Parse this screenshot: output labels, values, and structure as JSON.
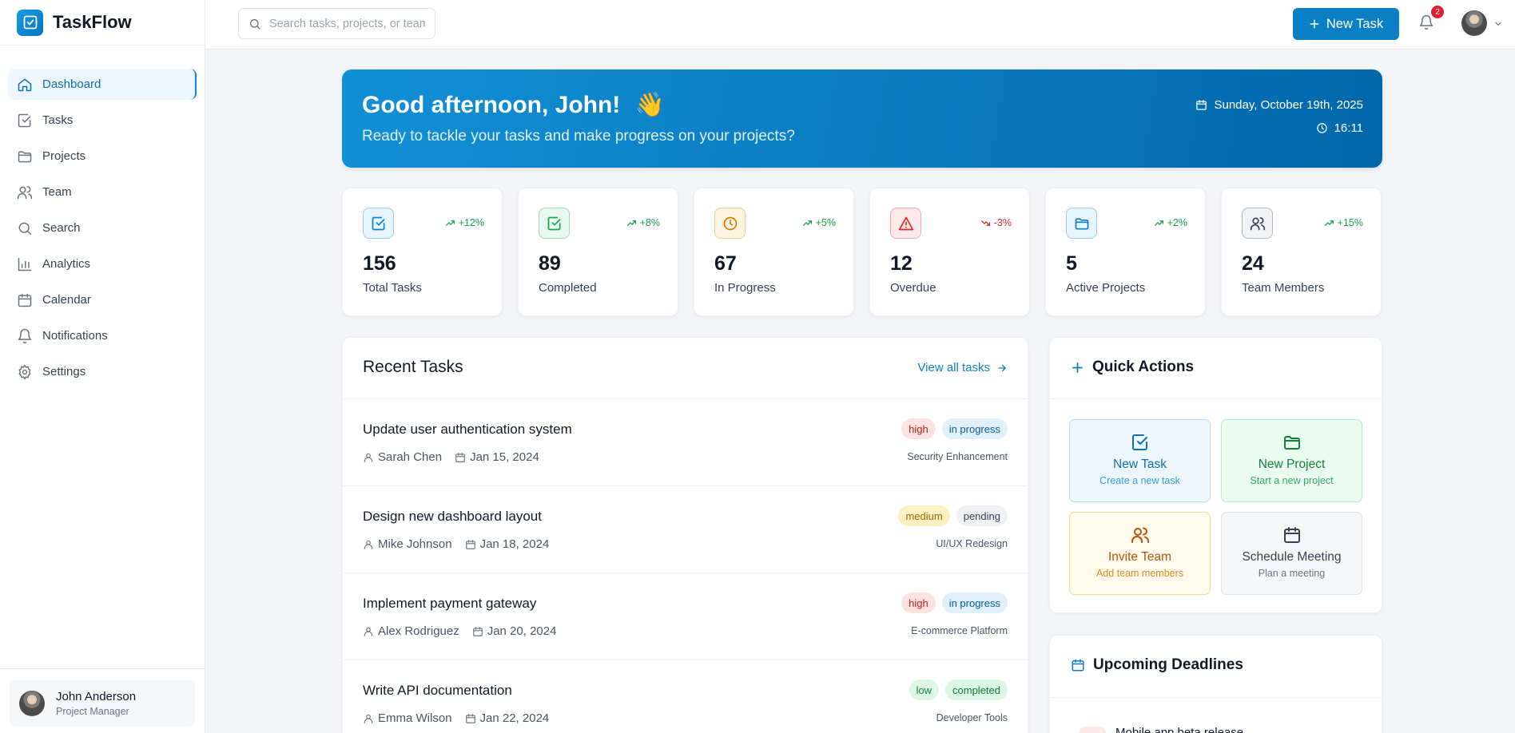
{
  "app": {
    "name": "TaskFlow"
  },
  "sidebar": {
    "items": [
      {
        "label": "Dashboard",
        "icon": "home-icon",
        "active": true
      },
      {
        "label": "Tasks",
        "icon": "check-square-icon"
      },
      {
        "label": "Projects",
        "icon": "folder-icon"
      },
      {
        "label": "Team",
        "icon": "users-icon"
      },
      {
        "label": "Search",
        "icon": "search-icon"
      },
      {
        "label": "Analytics",
        "icon": "bar-chart-icon"
      },
      {
        "label": "Calendar",
        "icon": "calendar-icon"
      },
      {
        "label": "Notifications",
        "icon": "bell-icon"
      },
      {
        "label": "Settings",
        "icon": "gear-icon"
      }
    ],
    "user": {
      "name": "John Anderson",
      "role": "Project Manager"
    }
  },
  "topbar": {
    "search_placeholder": "Search tasks, projects, or team",
    "new_task_label": "New Task",
    "notification_count": "2"
  },
  "hero": {
    "greeting": "Good afternoon, John!",
    "emoji": "👋",
    "subtitle": "Ready to tackle your tasks and make progress on your projects?",
    "date": "Sunday, October 19th, 2025",
    "time": "16:11"
  },
  "stats": [
    {
      "value": "156",
      "label": "Total Tasks",
      "trend": "+12%",
      "direction": "up",
      "icon": "check-square-icon",
      "color": "#0b7fc5",
      "bg": "#e6f4fc"
    },
    {
      "value": "89",
      "label": "Completed",
      "trend": "+8%",
      "direction": "up",
      "icon": "check-square-icon",
      "color": "#16a34a",
      "bg": "#e7f8ee"
    },
    {
      "value": "67",
      "label": "In Progress",
      "trend": "+5%",
      "direction": "up",
      "icon": "clock-icon",
      "color": "#d97706",
      "bg": "#fef5e0"
    },
    {
      "value": "12",
      "label": "Overdue",
      "trend": "-3%",
      "direction": "down",
      "icon": "alert-triangle-icon",
      "color": "#dc2626",
      "bg": "#fde9e9"
    },
    {
      "value": "5",
      "label": "Active Projects",
      "trend": "+2%",
      "direction": "up",
      "icon": "folder-icon",
      "color": "#0b7fc5",
      "bg": "#e6f4fc"
    },
    {
      "value": "24",
      "label": "Team Members",
      "trend": "+15%",
      "direction": "up",
      "icon": "users-icon",
      "color": "#374151",
      "bg": "#f1f2f5"
    }
  ],
  "recent_tasks": {
    "title": "Recent Tasks",
    "view_all_label": "View all tasks",
    "items": [
      {
        "title": "Update user authentication system",
        "assignee": "Sarah Chen",
        "date": "Jan 15, 2024",
        "priority": "high",
        "status": "in progress",
        "project": "Security Enhancement"
      },
      {
        "title": "Design new dashboard layout",
        "assignee": "Mike Johnson",
        "date": "Jan 18, 2024",
        "priority": "medium",
        "status": "pending",
        "project": "UI/UX Redesign"
      },
      {
        "title": "Implement payment gateway",
        "assignee": "Alex Rodriguez",
        "date": "Jan 20, 2024",
        "priority": "high",
        "status": "in progress",
        "project": "E-commerce Platform"
      },
      {
        "title": "Write API documentation",
        "assignee": "Emma Wilson",
        "date": "Jan 22, 2024",
        "priority": "low",
        "status": "completed",
        "project": "Developer Tools"
      }
    ]
  },
  "quick_actions": {
    "title": "Quick Actions",
    "items": [
      {
        "label": "New Task",
        "sub": "Create a new task",
        "icon": "check-square-icon"
      },
      {
        "label": "New Project",
        "sub": "Start a new project",
        "icon": "folder-icon"
      },
      {
        "label": "Invite Team",
        "sub": "Add team members",
        "icon": "users-icon"
      },
      {
        "label": "Schedule Meeting",
        "sub": "Plan a meeting",
        "icon": "calendar-icon"
      }
    ]
  },
  "deadlines": {
    "title": "Upcoming Deadlines",
    "items": [
      {
        "title": "Mobile app beta release"
      }
    ]
  }
}
